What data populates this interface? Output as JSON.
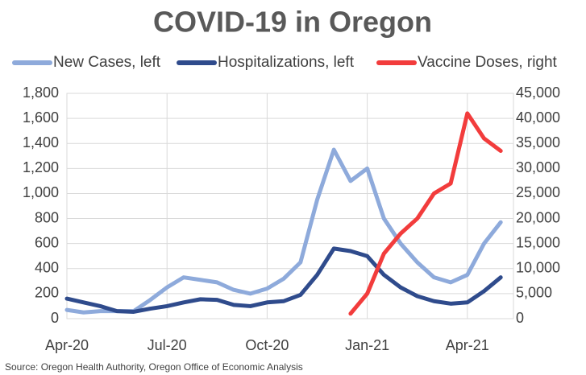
{
  "chart_data": {
    "type": "line",
    "title": "COVID-19 in Oregon",
    "source": "Source: Oregon Health Authority, Oregon Office of Economic Analysis",
    "categories": [
      "Apr-20",
      null,
      null,
      null,
      null,
      null,
      "Jul-20",
      null,
      null,
      null,
      null,
      null,
      "Oct-20",
      null,
      null,
      null,
      null,
      null,
      "Jan-21",
      null,
      null,
      null,
      null,
      null,
      "Apr-21",
      null,
      null
    ],
    "series": [
      {
        "name": "New Cases, left",
        "color": "#8eaadb",
        "axis": "y",
        "values": [
          70,
          50,
          60,
          60,
          60,
          150,
          250,
          330,
          310,
          290,
          230,
          200,
          240,
          320,
          450,
          950,
          1350,
          1100,
          1200,
          800,
          600,
          450,
          330,
          290,
          350,
          600,
          770
        ]
      },
      {
        "name": "Hospitalizations, left",
        "color": "#2f4b8c",
        "axis": "y",
        "values": [
          160,
          130,
          100,
          60,
          55,
          80,
          100,
          130,
          155,
          150,
          110,
          100,
          130,
          140,
          190,
          350,
          560,
          540,
          500,
          350,
          250,
          180,
          140,
          120,
          130,
          220,
          330
        ]
      },
      {
        "name": "Vaccine Doses, right",
        "color": "#f23c3c",
        "axis": "y2",
        "values": [
          null,
          null,
          null,
          null,
          null,
          null,
          null,
          null,
          null,
          null,
          null,
          null,
          null,
          null,
          null,
          null,
          null,
          1000,
          5000,
          13000,
          17000,
          20000,
          25000,
          27000,
          41000,
          36000,
          33500
        ]
      }
    ],
    "ylim": [
      0,
      1800
    ],
    "yticks": [
      0,
      200,
      400,
      600,
      800,
      {
        "value": 1000,
        "label": "1,000"
      },
      {
        "value": 1200,
        "label": "1,200"
      },
      {
        "value": 1400,
        "label": "1,400"
      },
      {
        "value": 1600,
        "label": "1,600"
      },
      {
        "value": 1800,
        "label": "1,800"
      }
    ],
    "y2lim": [
      0,
      45000
    ],
    "y2ticks": [
      0,
      {
        "value": 5000,
        "label": "5,000"
      },
      {
        "value": 10000,
        "label": "10,000"
      },
      {
        "value": 15000,
        "label": "15,000"
      },
      {
        "value": 20000,
        "label": "20,000"
      },
      {
        "value": 25000,
        "label": "25,000"
      },
      {
        "value": 30000,
        "label": "30,000"
      },
      {
        "value": 35000,
        "label": "35,000"
      },
      {
        "value": 40000,
        "label": "40,000"
      },
      {
        "value": 45000,
        "label": "45,000"
      }
    ],
    "grid": true,
    "legend": "top"
  }
}
